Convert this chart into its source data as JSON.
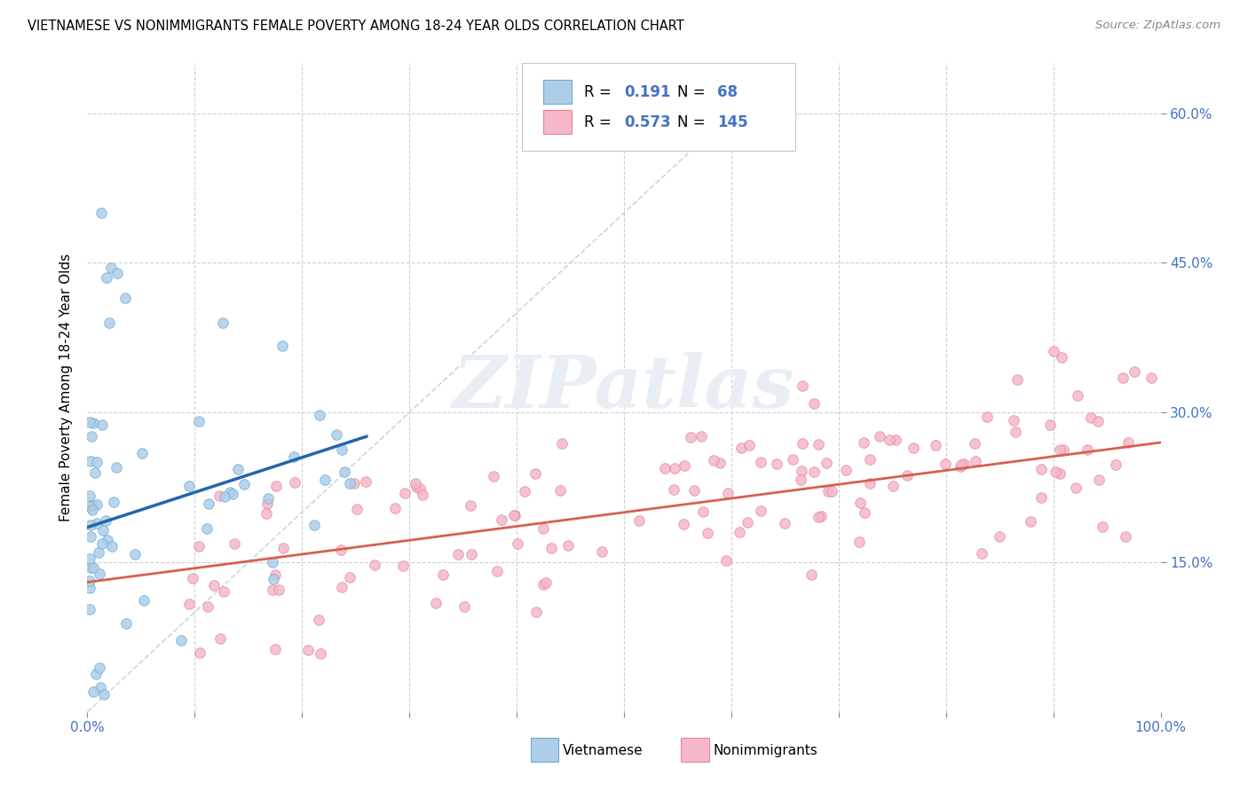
{
  "title": "VIETNAMESE VS NONIMMIGRANTS FEMALE POVERTY AMONG 18-24 YEAR OLDS CORRELATION CHART",
  "source": "Source: ZipAtlas.com",
  "ylabel": "Female Poverty Among 18-24 Year Olds",
  "xlim": [
    0,
    1.0
  ],
  "ylim": [
    0,
    0.65
  ],
  "viet_R": 0.191,
  "viet_N": 68,
  "nonimm_R": 0.573,
  "nonimm_N": 145,
  "viet_scatter_color": "#aecde8",
  "viet_edge_color": "#6aadd5",
  "nonimm_scatter_color": "#f4b8c8",
  "nonimm_edge_color": "#e8869a",
  "diagonal_color": "#b8cfe0",
  "background_color": "#ffffff",
  "grid_color": "#d0d0d0",
  "viet_line_color": "#2166ac",
  "nonimm_line_color": "#d6604d",
  "tick_color": "#4472c4",
  "watermark_color": "#e8eef4",
  "legend_box_color": "#f0f4f8",
  "legend_edge_color": "#c8d4e0"
}
